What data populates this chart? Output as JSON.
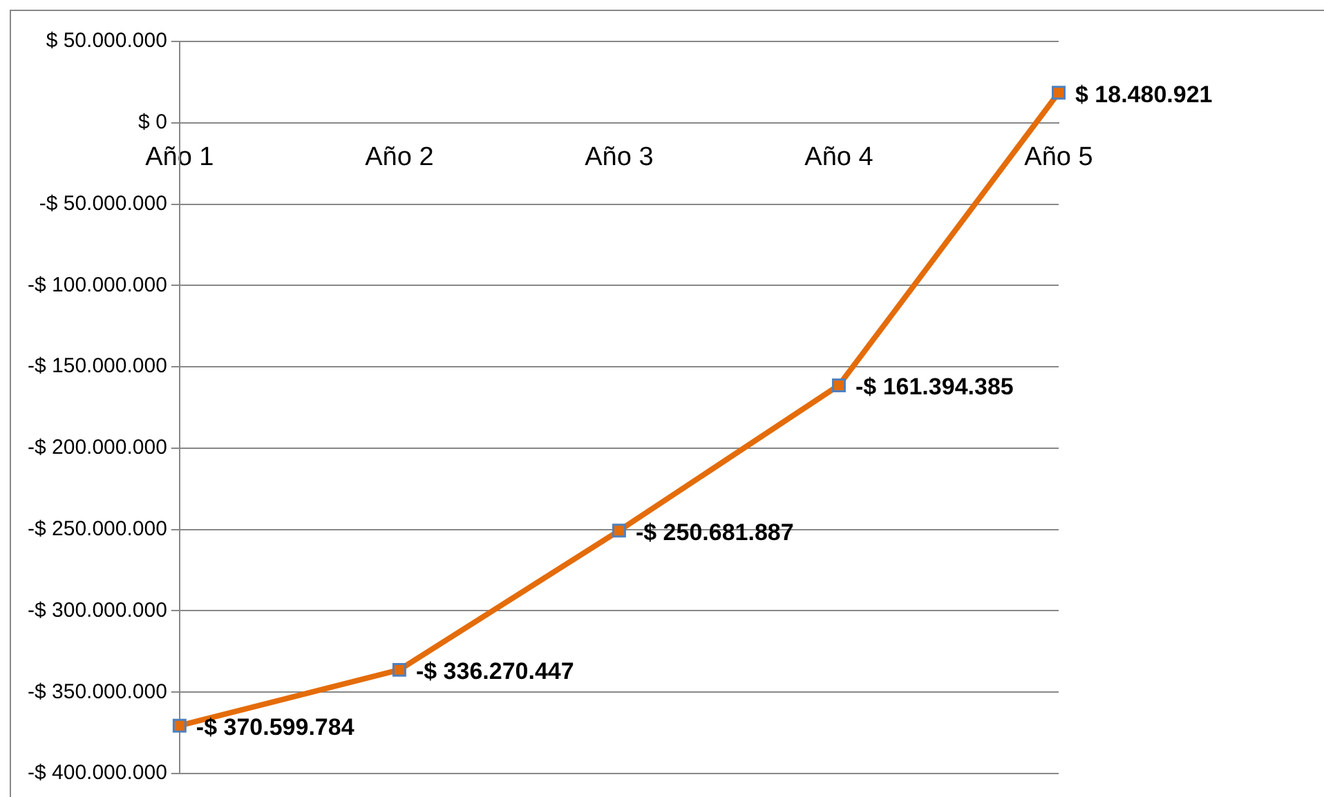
{
  "chart_data": {
    "type": "line",
    "categories": [
      "Año 1",
      "Año 2",
      "Año 3",
      "Año 4",
      "Año 5"
    ],
    "series": [
      {
        "color": "#e46c0a",
        "values": [
          -370599784,
          -336270447,
          -250681887,
          -161394385,
          18480921
        ],
        "value_labels": [
          "-$ 370.599.784",
          "-$ 336.270.447",
          "-$ 250.681.887",
          "-$ 161.394.385",
          "$ 18.480.921"
        ]
      }
    ],
    "ylim": [
      -400000000,
      50000000
    ],
    "yticks": [
      {
        "value": 50000000,
        "label": "$ 50.000.000"
      },
      {
        "value": 0,
        "label": "$ 0"
      },
      {
        "value": -50000000,
        "label": "-$ 50.000.000"
      },
      {
        "value": -100000000,
        "label": "-$ 100.000.000"
      },
      {
        "value": -150000000,
        "label": "-$ 150.000.000"
      },
      {
        "value": -200000000,
        "label": "-$ 200.000.000"
      },
      {
        "value": -250000000,
        "label": "-$ 250.000.000"
      },
      {
        "value": -300000000,
        "label": "-$ 300.000.000"
      },
      {
        "value": -350000000,
        "label": "-$ 350.000.000"
      },
      {
        "value": -400000000,
        "label": "-$ 400.000.000"
      }
    ],
    "grid": "y",
    "legend": false,
    "marker": "square",
    "line_style": "solid"
  }
}
